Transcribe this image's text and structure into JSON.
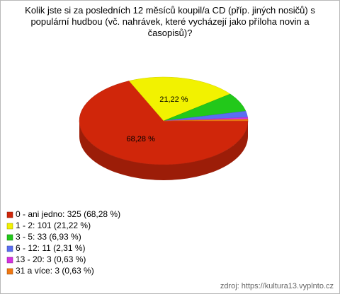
{
  "chart_data": {
    "type": "pie",
    "title": "Kolik jste si za posledních 12 měsíců koupil/a CD (příp. jiných nosičů) s populární hudbou (vč. nahrávek, které vycházejí jako příloha novin a časopisů)?",
    "categories": [
      "0 - ani jedno: 325 (68,28 %)",
      "1 - 2: 101 (21,22 %)",
      "3 - 5: 33 (6,93 %)",
      "6 - 12: 11 (2,31 %)",
      "13 - 20: 3 (0,63 %)",
      "31 a více: 3 (0,63 %)"
    ],
    "values": [
      68.28,
      21.22,
      6.93,
      2.31,
      0.63,
      0.63
    ],
    "value_labels": [
      "68,28 %",
      "21,22 %",
      null,
      null,
      null,
      null
    ],
    "colors": [
      "#d0260a",
      "#f2f200",
      "#22c81a",
      "#5a6ef2",
      "#d632e0",
      "#f07812"
    ],
    "source": "zdroj: https://kultura13.vyplnto.cz"
  }
}
